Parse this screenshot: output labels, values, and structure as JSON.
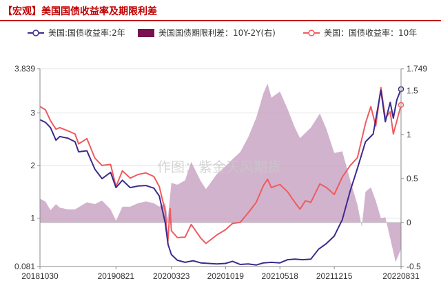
{
  "title": "【宏观】美国国债收益率及期限利差",
  "watermark": "作图：紫金天风期货",
  "colors": {
    "y2": "#3b2a8c",
    "y10": "#f05a5e",
    "spread": "#c7a0c0",
    "spread_legend": "#7a1050",
    "title": "#c00000"
  },
  "legend": [
    {
      "key": "y2",
      "label": "美国:国债收益率:2年",
      "style": "line-marker"
    },
    {
      "key": "spread",
      "label": "美国国债期限利差：10Y-2Y(右)",
      "style": "box"
    },
    {
      "key": "y10",
      "label": "美国：国债收益率：10年",
      "style": "line-marker"
    }
  ],
  "chart_data": {
    "type": "line",
    "x_ticks": [
      "20181030",
      "20190821",
      "20200323",
      "20201019",
      "20210518",
      "20211215",
      "20220831"
    ],
    "x_domain": [
      "2018-10-30",
      "2022-08-31"
    ],
    "y_left": {
      "min": 0.081,
      "max": 3.839,
      "ticks": [
        "0.081",
        "1",
        "2",
        "3",
        "3.839"
      ]
    },
    "y_right": {
      "min": -0.5,
      "max": 1.749,
      "ticks": [
        "-0.5",
        "0",
        "0.5",
        "1",
        "1.5",
        "1.749"
      ]
    },
    "series": [
      {
        "name": "美国:国债收益率:2年",
        "axis": "left",
        "points": [
          [
            "2018-10-30",
            2.87
          ],
          [
            "2018-11-20",
            2.82
          ],
          [
            "2018-12-10",
            2.72
          ],
          [
            "2018-12-31",
            2.48
          ],
          [
            "2019-01-15",
            2.55
          ],
          [
            "2019-02-15",
            2.52
          ],
          [
            "2019-03-15",
            2.45
          ],
          [
            "2019-03-29",
            2.26
          ],
          [
            "2019-04-30",
            2.28
          ],
          [
            "2019-05-31",
            1.93
          ],
          [
            "2019-06-28",
            1.75
          ],
          [
            "2019-07-31",
            1.87
          ],
          [
            "2019-08-21",
            1.58
          ],
          [
            "2019-09-15",
            1.72
          ],
          [
            "2019-10-15",
            1.58
          ],
          [
            "2019-11-15",
            1.61
          ],
          [
            "2019-12-15",
            1.62
          ],
          [
            "2020-01-15",
            1.57
          ],
          [
            "2020-02-05",
            1.42
          ],
          [
            "2020-02-28",
            0.91
          ],
          [
            "2020-03-10",
            0.5
          ],
          [
            "2020-03-23",
            0.31
          ],
          [
            "2020-04-15",
            0.2
          ],
          [
            "2020-05-15",
            0.16
          ],
          [
            "2020-06-15",
            0.19
          ],
          [
            "2020-07-15",
            0.15
          ],
          [
            "2020-08-15",
            0.14
          ],
          [
            "2020-09-15",
            0.13
          ],
          [
            "2020-10-19",
            0.14
          ],
          [
            "2020-11-15",
            0.18
          ],
          [
            "2020-12-15",
            0.12
          ],
          [
            "2021-01-15",
            0.13
          ],
          [
            "2021-02-15",
            0.11
          ],
          [
            "2021-03-15",
            0.15
          ],
          [
            "2021-04-15",
            0.16
          ],
          [
            "2021-05-18",
            0.15
          ],
          [
            "2021-06-17",
            0.21
          ],
          [
            "2021-07-15",
            0.22
          ],
          [
            "2021-08-15",
            0.21
          ],
          [
            "2021-09-15",
            0.22
          ],
          [
            "2021-10-15",
            0.41
          ],
          [
            "2021-11-15",
            0.52
          ],
          [
            "2021-12-15",
            0.66
          ],
          [
            "2022-01-15",
            0.97
          ],
          [
            "2022-02-15",
            1.52
          ],
          [
            "2022-03-15",
            1.95
          ],
          [
            "2022-04-15",
            2.45
          ],
          [
            "2022-05-15",
            2.6
          ],
          [
            "2022-06-14",
            3.43
          ],
          [
            "2022-07-01",
            2.83
          ],
          [
            "2022-07-20",
            3.2
          ],
          [
            "2022-08-01",
            2.9
          ],
          [
            "2022-08-15",
            3.25
          ],
          [
            "2022-08-31",
            3.45
          ]
        ]
      },
      {
        "name": "美国：国债收益率：10年",
        "axis": "left",
        "points": [
          [
            "2018-10-30",
            3.12
          ],
          [
            "2018-11-20",
            3.06
          ],
          [
            "2018-12-10",
            2.85
          ],
          [
            "2018-12-31",
            2.69
          ],
          [
            "2019-01-15",
            2.72
          ],
          [
            "2019-02-15",
            2.66
          ],
          [
            "2019-03-15",
            2.6
          ],
          [
            "2019-03-29",
            2.41
          ],
          [
            "2019-04-30",
            2.51
          ],
          [
            "2019-05-31",
            2.14
          ],
          [
            "2019-06-28",
            2.0
          ],
          [
            "2019-07-31",
            2.02
          ],
          [
            "2019-08-21",
            1.6
          ],
          [
            "2019-09-15",
            1.9
          ],
          [
            "2019-10-15",
            1.76
          ],
          [
            "2019-11-15",
            1.83
          ],
          [
            "2019-12-15",
            1.86
          ],
          [
            "2020-01-15",
            1.79
          ],
          [
            "2020-02-05",
            1.6
          ],
          [
            "2020-02-28",
            1.13
          ],
          [
            "2020-03-09",
            0.54
          ],
          [
            "2020-03-18",
            1.18
          ],
          [
            "2020-03-23",
            0.76
          ],
          [
            "2020-04-15",
            0.63
          ],
          [
            "2020-05-15",
            0.64
          ],
          [
            "2020-06-08",
            0.88
          ],
          [
            "2020-07-15",
            0.62
          ],
          [
            "2020-08-04",
            0.52
          ],
          [
            "2020-09-15",
            0.68
          ],
          [
            "2020-10-19",
            0.78
          ],
          [
            "2020-11-15",
            0.9
          ],
          [
            "2020-12-15",
            0.92
          ],
          [
            "2021-01-15",
            1.1
          ],
          [
            "2021-02-15",
            1.3
          ],
          [
            "2021-03-15",
            1.62
          ],
          [
            "2021-03-31",
            1.74
          ],
          [
            "2021-04-15",
            1.58
          ],
          [
            "2021-05-18",
            1.64
          ],
          [
            "2021-06-17",
            1.5
          ],
          [
            "2021-07-15",
            1.3
          ],
          [
            "2021-08-04",
            1.17
          ],
          [
            "2021-08-25",
            1.33
          ],
          [
            "2021-09-15",
            1.3
          ],
          [
            "2021-10-20",
            1.65
          ],
          [
            "2021-11-15",
            1.58
          ],
          [
            "2021-12-15",
            1.45
          ],
          [
            "2022-01-15",
            1.78
          ],
          [
            "2022-02-15",
            2.0
          ],
          [
            "2022-03-15",
            2.15
          ],
          [
            "2022-04-15",
            2.8
          ],
          [
            "2022-05-06",
            3.12
          ],
          [
            "2022-05-25",
            2.75
          ],
          [
            "2022-06-14",
            3.48
          ],
          [
            "2022-07-01",
            2.9
          ],
          [
            "2022-07-20",
            3.02
          ],
          [
            "2022-08-01",
            2.6
          ],
          [
            "2022-08-15",
            2.85
          ],
          [
            "2022-08-31",
            3.15
          ]
        ]
      },
      {
        "name": "美国国债期限利差：10Y-2Y(右)",
        "axis": "right",
        "type": "area",
        "points": [
          [
            "2018-10-30",
            0.27
          ],
          [
            "2018-11-20",
            0.24
          ],
          [
            "2018-12-10",
            0.14
          ],
          [
            "2018-12-31",
            0.21
          ],
          [
            "2019-01-15",
            0.17
          ],
          [
            "2019-02-15",
            0.15
          ],
          [
            "2019-03-15",
            0.15
          ],
          [
            "2019-04-30",
            0.23
          ],
          [
            "2019-05-31",
            0.21
          ],
          [
            "2019-06-28",
            0.25
          ],
          [
            "2019-07-31",
            0.15
          ],
          [
            "2019-08-21",
            0.02
          ],
          [
            "2019-09-15",
            0.18
          ],
          [
            "2019-10-15",
            0.18
          ],
          [
            "2019-11-15",
            0.22
          ],
          [
            "2019-12-15",
            0.24
          ],
          [
            "2020-01-15",
            0.22
          ],
          [
            "2020-02-05",
            0.18
          ],
          [
            "2020-02-28",
            0.22
          ],
          [
            "2020-03-09",
            0.04
          ],
          [
            "2020-03-23",
            0.45
          ],
          [
            "2020-04-15",
            0.43
          ],
          [
            "2020-05-15",
            0.48
          ],
          [
            "2020-06-08",
            0.69
          ],
          [
            "2020-07-15",
            0.47
          ],
          [
            "2020-08-04",
            0.38
          ],
          [
            "2020-09-15",
            0.55
          ],
          [
            "2020-10-19",
            0.64
          ],
          [
            "2020-11-15",
            0.72
          ],
          [
            "2020-12-15",
            0.8
          ],
          [
            "2021-01-15",
            0.97
          ],
          [
            "2021-02-15",
            1.19
          ],
          [
            "2021-03-15",
            1.47
          ],
          [
            "2021-03-31",
            1.58
          ],
          [
            "2021-04-15",
            1.42
          ],
          [
            "2021-05-18",
            1.49
          ],
          [
            "2021-06-17",
            1.29
          ],
          [
            "2021-07-15",
            1.08
          ],
          [
            "2021-08-04",
            0.96
          ],
          [
            "2021-09-15",
            1.08
          ],
          [
            "2021-10-20",
            1.24
          ],
          [
            "2021-11-15",
            1.06
          ],
          [
            "2021-12-15",
            0.79
          ],
          [
            "2022-01-15",
            0.81
          ],
          [
            "2022-02-15",
            0.48
          ],
          [
            "2022-03-15",
            0.2
          ],
          [
            "2022-04-01",
            -0.05
          ],
          [
            "2022-04-15",
            0.35
          ],
          [
            "2022-05-06",
            0.4
          ],
          [
            "2022-05-25",
            0.25
          ],
          [
            "2022-06-14",
            0.05
          ],
          [
            "2022-07-01",
            0.06
          ],
          [
            "2022-07-20",
            -0.18
          ],
          [
            "2022-08-10",
            -0.45
          ],
          [
            "2022-08-31",
            -0.3
          ]
        ]
      }
    ]
  }
}
